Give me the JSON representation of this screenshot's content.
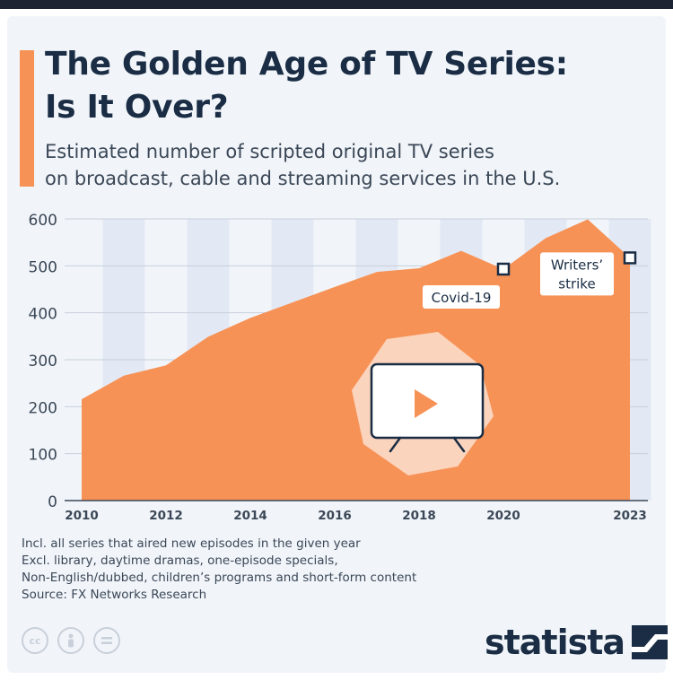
{
  "header": {
    "title_line1": "The Golden Age of TV Series:",
    "title_line2": "Is It Over?",
    "subtitle_line1": "Estimated number of scripted original TV series",
    "subtitle_line2": "on broadcast, cable and streaming services in the U.S."
  },
  "notes": {
    "line1": "Incl. all series that aired new episodes in the given year",
    "line2": "Excl. library, daytime dramas, one-episode specials,",
    "line3": "Non-English/dubbed, children’s programs and short-form content",
    "source": "Source: FX Networks Research"
  },
  "brand": {
    "name": "statista"
  },
  "cc_icons": [
    "cc",
    "person",
    "equals"
  ],
  "colors": {
    "area": "#f79256",
    "stripe": "#e3e9f4",
    "title": "#1a2d44",
    "accent": "#f79256",
    "background": "#f1f5fa"
  },
  "chart_data": {
    "type": "area",
    "x": [
      2010,
      2011,
      2012,
      2013,
      2014,
      2015,
      2016,
      2017,
      2018,
      2019,
      2020,
      2021,
      2022,
      2023
    ],
    "values": [
      216,
      266,
      288,
      349,
      389,
      422,
      455,
      487,
      495,
      532,
      493,
      559,
      599,
      517
    ],
    "x_tick_labels": [
      "2010",
      "2012",
      "2014",
      "2016",
      "2018",
      "2020",
      "2023"
    ],
    "y_ticks": [
      0,
      100,
      200,
      300,
      400,
      500,
      600
    ],
    "ylim": [
      0,
      600
    ],
    "annotations": [
      {
        "x": 2020,
        "label": "Covid-19"
      },
      {
        "x": 2023,
        "label_line1": "Writers’",
        "label_line2": "strike"
      }
    ],
    "grid": true,
    "center_icon": "tv-play-icon"
  }
}
